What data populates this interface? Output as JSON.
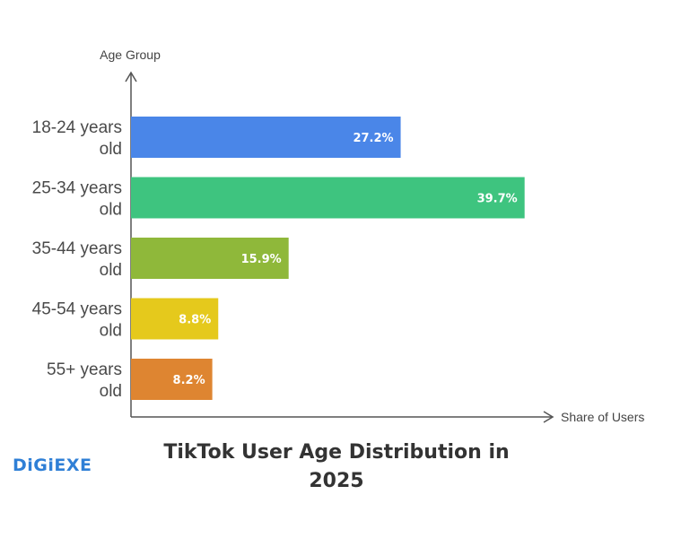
{
  "chart_data": {
    "type": "bar",
    "orientation": "horizontal",
    "title": "TikTok User Age Distribution in 2025",
    "xlabel": "Share of Users",
    "ylabel": "Age Group",
    "categories": [
      [
        "18-24 years",
        "old"
      ],
      [
        "25-34 years",
        "old"
      ],
      [
        "35-44 years",
        "old"
      ],
      [
        "45-54 years",
        "old"
      ],
      [
        "55+ years",
        "old"
      ]
    ],
    "values": [
      27.2,
      39.7,
      15.9,
      8.8,
      8.2
    ],
    "value_labels": [
      "27.2%",
      "39.7%",
      "15.9%",
      "8.8%",
      "8.2%"
    ],
    "colors": [
      "#4a86e8",
      "#3ec47f",
      "#8fb83a",
      "#e5c91c",
      "#de8531"
    ],
    "xlim": [
      0,
      50
    ],
    "grid": false,
    "legend": "none"
  },
  "branding": {
    "logo_text": "DiGiEXE",
    "color": "#2f7fd6"
  }
}
